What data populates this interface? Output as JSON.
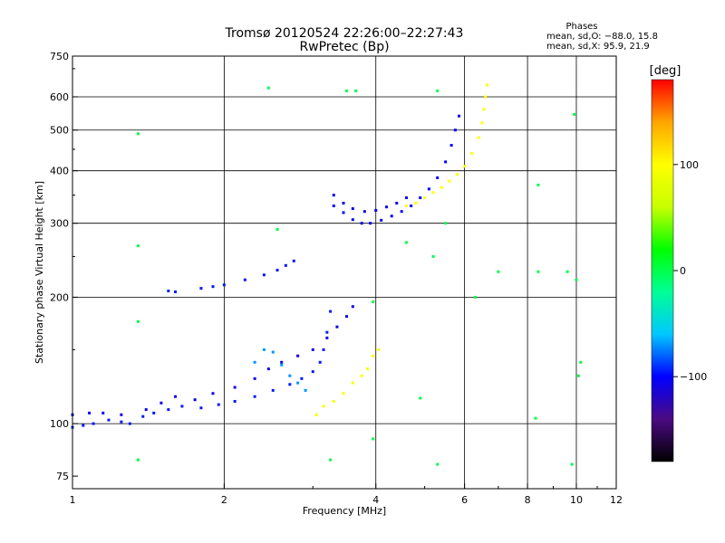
{
  "chart_data": {
    "type": "scatter",
    "title": "Tromsø 20120524 22:26:00–22:27:43",
    "subtitle": "RwPretec (Bp)",
    "xlabel": "Frequency [MHz]",
    "ylabel": "Stationary phase Virtual Height [km]",
    "x_scale": "log",
    "y_scale": "log",
    "xlim": [
      1,
      12
    ],
    "ylim": [
      70,
      750
    ],
    "x_ticks": [
      1,
      2,
      4,
      6,
      8,
      10,
      12
    ],
    "x_tick_labels": [
      "1",
      "2",
      "4",
      "6",
      "8",
      "10",
      "12"
    ],
    "x_gridlines": [
      2,
      4,
      6,
      8,
      10
    ],
    "y_ticks": [
      75,
      100,
      200,
      300,
      400,
      500,
      600,
      750
    ],
    "y_tick_labels": [
      "75",
      "100",
      "200",
      "300",
      "400",
      "500",
      "600",
      "750"
    ],
    "y_gridlines": [
      100,
      200,
      300,
      400,
      500,
      600
    ],
    "grid": true,
    "phases_box": {
      "title": "Phases",
      "line1": "mean, sd,O: −88.0, 15.8",
      "line2": "mean, sd,X:  95.9, 21.9"
    },
    "colorbar": {
      "label": "[deg]",
      "range": [
        -180,
        180
      ],
      "ticks": [
        100,
        0,
        -100
      ],
      "tick_labels": [
        "100",
        "0",
        "−100"
      ],
      "colors": [
        "#000000",
        "#4b0a82",
        "#0000ff",
        "#00c8ff",
        "#00ff96",
        "#00ff00",
        "#c8ff00",
        "#ffff00",
        "#ffa500",
        "#ff0000"
      ]
    },
    "series": [
      {
        "name": "E-layer O trace",
        "phase": -95,
        "points": [
          [
            1.0,
            98
          ],
          [
            1.05,
            99
          ],
          [
            1.1,
            100
          ],
          [
            1.18,
            102
          ],
          [
            1.25,
            101
          ],
          [
            1.3,
            100
          ],
          [
            1.38,
            104
          ],
          [
            1.45,
            106
          ],
          [
            1.55,
            108
          ],
          [
            1.65,
            110
          ],
          [
            1.8,
            109
          ],
          [
            1.95,
            111
          ],
          [
            2.1,
            113
          ],
          [
            2.3,
            116
          ],
          [
            2.5,
            120
          ],
          [
            2.7,
            124
          ],
          [
            2.85,
            128
          ],
          [
            3.0,
            133
          ],
          [
            3.1,
            140
          ],
          [
            3.15,
            150
          ],
          [
            3.2,
            165
          ],
          [
            3.25,
            185
          ]
        ]
      },
      {
        "name": "E-layer secondary trace",
        "phase": -105,
        "points": [
          [
            1.0,
            105
          ],
          [
            1.08,
            106
          ],
          [
            1.15,
            106
          ],
          [
            1.25,
            105
          ],
          [
            1.4,
            108
          ],
          [
            1.5,
            112
          ],
          [
            1.6,
            116
          ],
          [
            1.75,
            114
          ],
          [
            1.9,
            118
          ],
          [
            2.1,
            122
          ],
          [
            2.3,
            128
          ],
          [
            2.45,
            135
          ],
          [
            2.6,
            140
          ],
          [
            2.8,
            145
          ],
          [
            3.0,
            150
          ],
          [
            3.2,
            160
          ],
          [
            3.35,
            170
          ],
          [
            3.5,
            180
          ],
          [
            3.6,
            190
          ]
        ]
      },
      {
        "name": "E-layer upper spread",
        "phase": -70,
        "points": [
          [
            2.3,
            140
          ],
          [
            2.4,
            150
          ],
          [
            2.5,
            148
          ],
          [
            2.6,
            138
          ],
          [
            2.7,
            130
          ],
          [
            2.8,
            125
          ],
          [
            2.9,
            120
          ]
        ]
      },
      {
        "name": "E-layer X trace",
        "phase": 95,
        "points": [
          [
            3.05,
            105
          ],
          [
            3.15,
            110
          ],
          [
            3.3,
            113
          ],
          [
            3.45,
            118
          ],
          [
            3.6,
            125
          ],
          [
            3.75,
            130
          ],
          [
            3.85,
            135
          ],
          [
            3.95,
            145
          ],
          [
            4.05,
            150
          ]
        ]
      },
      {
        "name": "Es/F1 fragment",
        "phase": -95,
        "points": [
          [
            1.55,
            207
          ],
          [
            1.6,
            206
          ],
          [
            1.8,
            210
          ],
          [
            1.9,
            212
          ],
          [
            2.0,
            214
          ],
          [
            2.2,
            220
          ],
          [
            2.4,
            226
          ],
          [
            2.55,
            232
          ],
          [
            2.65,
            238
          ],
          [
            2.75,
            244
          ]
        ]
      },
      {
        "name": "F2 O trace",
        "phase": -100,
        "points": [
          [
            3.3,
            330
          ],
          [
            3.45,
            318
          ],
          [
            3.6,
            306
          ],
          [
            3.75,
            300
          ],
          [
            3.9,
            300
          ],
          [
            4.1,
            305
          ],
          [
            4.3,
            312
          ],
          [
            4.5,
            320
          ],
          [
            4.7,
            330
          ],
          [
            4.9,
            345
          ],
          [
            5.1,
            362
          ],
          [
            5.3,
            385
          ],
          [
            5.5,
            420
          ],
          [
            5.65,
            460
          ],
          [
            5.75,
            500
          ],
          [
            5.85,
            540
          ]
        ]
      },
      {
        "name": "F2 O upper echo",
        "phase": -105,
        "points": [
          [
            3.3,
            350
          ],
          [
            3.45,
            335
          ],
          [
            3.6,
            325
          ],
          [
            3.8,
            320
          ],
          [
            4.0,
            322
          ],
          [
            4.2,
            328
          ],
          [
            4.4,
            335
          ],
          [
            4.6,
            345
          ]
        ]
      },
      {
        "name": "F2 X trace",
        "phase": 100,
        "points": [
          [
            4.6,
            330
          ],
          [
            4.8,
            335
          ],
          [
            5.0,
            345
          ],
          [
            5.2,
            355
          ],
          [
            5.4,
            365
          ],
          [
            5.6,
            378
          ],
          [
            5.8,
            392
          ],
          [
            6.0,
            410
          ],
          [
            6.2,
            440
          ],
          [
            6.4,
            480
          ],
          [
            6.5,
            520
          ],
          [
            6.55,
            560
          ],
          [
            6.6,
            600
          ],
          [
            6.65,
            640
          ]
        ]
      },
      {
        "name": "Scattered noise",
        "phase": 0,
        "points": [
          [
            1.35,
            490
          ],
          [
            2.45,
            630
          ],
          [
            3.5,
            620
          ],
          [
            3.65,
            620
          ],
          [
            1.35,
            265
          ],
          [
            2.55,
            290
          ],
          [
            5.3,
            620
          ],
          [
            8.4,
            370
          ],
          [
            8.4,
            230
          ],
          [
            9.6,
            230
          ],
          [
            9.9,
            545
          ],
          [
            10.0,
            220
          ],
          [
            4.6,
            270
          ],
          [
            5.2,
            250
          ],
          [
            5.5,
            300
          ],
          [
            6.3,
            200
          ],
          [
            7.0,
            230
          ],
          [
            3.95,
            195
          ],
          [
            1.35,
            175
          ],
          [
            8.3,
            103
          ],
          [
            9.8,
            80
          ],
          [
            1.35,
            82
          ],
          [
            3.25,
            82
          ],
          [
            3.95,
            92
          ],
          [
            5.3,
            80
          ],
          [
            4.9,
            115
          ],
          [
            10.1,
            130
          ],
          [
            10.2,
            140
          ]
        ]
      }
    ]
  }
}
